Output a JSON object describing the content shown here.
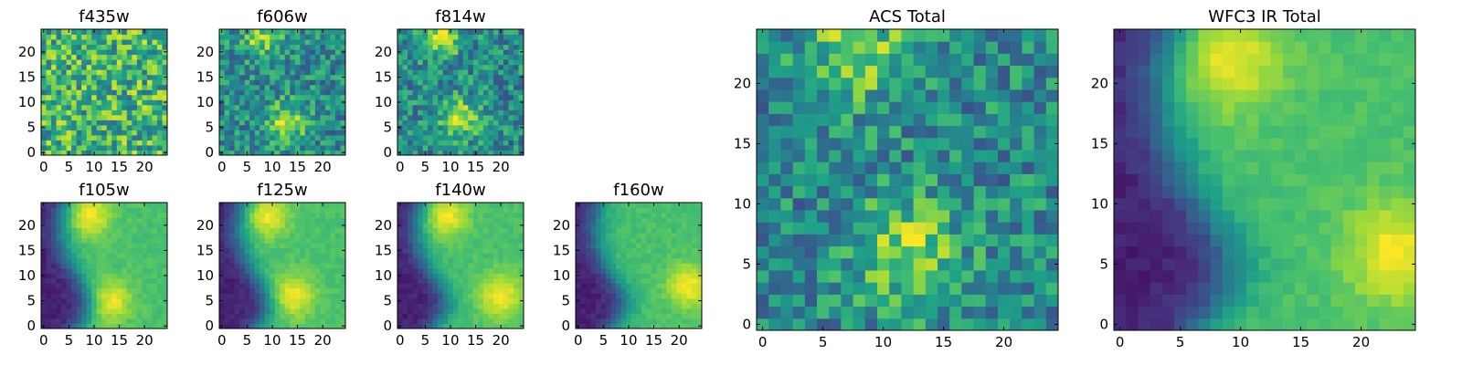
{
  "figure": {
    "colormap": "viridis",
    "colormap_stops": [
      "#440154",
      "#46327e",
      "#365c8d",
      "#277f8e",
      "#1fa187",
      "#4ac16d",
      "#a0da39",
      "#fde725"
    ]
  },
  "chart_data": [
    {
      "type": "heatmap",
      "title": "f435w",
      "xlabel": "",
      "ylabel": "",
      "xlim": [
        -0.5,
        24.5
      ],
      "ylim": [
        -0.5,
        24.5
      ],
      "origin": "lower",
      "grid": false,
      "xticks": [
        0,
        5,
        10,
        15,
        20
      ],
      "yticks": [
        0,
        5,
        10,
        15,
        20
      ],
      "xticklabels": [
        "0",
        "5",
        "10",
        "15",
        "20"
      ],
      "yticklabels": [
        "0",
        "5",
        "10",
        "15",
        "20"
      ],
      "pattern": "noise",
      "level_range": [
        0.25,
        0.95
      ]
    },
    {
      "type": "heatmap",
      "title": "f606w",
      "xlabel": "",
      "ylabel": "",
      "xlim": [
        -0.5,
        24.5
      ],
      "ylim": [
        -0.5,
        24.5
      ],
      "origin": "lower",
      "grid": false,
      "xticks": [
        0,
        5,
        10,
        15,
        20
      ],
      "yticks": [
        0,
        5,
        10,
        15,
        20
      ],
      "xticklabels": [
        "0",
        "5",
        "10",
        "15",
        "20"
      ],
      "yticklabels": [
        "0",
        "5",
        "10",
        "15",
        "20"
      ],
      "pattern": "noisy-blobs",
      "bright_regions": [
        [
          8,
          23
        ],
        [
          13,
          6
        ]
      ],
      "level_range": [
        0.05,
        0.95
      ]
    },
    {
      "type": "heatmap",
      "title": "f814w",
      "xlabel": "",
      "ylabel": "",
      "xlim": [
        -0.5,
        24.5
      ],
      "ylim": [
        -0.5,
        24.5
      ],
      "origin": "lower",
      "grid": false,
      "xticks": [
        0,
        5,
        10,
        15,
        20
      ],
      "yticks": [
        0,
        5,
        10,
        15,
        20
      ],
      "xticklabels": [
        "0",
        "5",
        "10",
        "15",
        "20"
      ],
      "yticklabels": [
        "0",
        "5",
        "10",
        "15",
        "20"
      ],
      "pattern": "noisy-blobs",
      "bright_regions": [
        [
          8,
          23
        ],
        [
          12,
          7
        ]
      ],
      "level_range": [
        0.05,
        0.95
      ]
    },
    {
      "type": "heatmap",
      "title": "f105w",
      "xlabel": "",
      "ylabel": "",
      "xlim": [
        -0.5,
        24.5
      ],
      "ylim": [
        -0.5,
        24.5
      ],
      "origin": "lower",
      "grid": false,
      "xticks": [
        0,
        5,
        10,
        15,
        20
      ],
      "yticks": [
        0,
        5,
        10,
        15,
        20
      ],
      "xticklabels": [
        "0",
        "5",
        "10",
        "15",
        "20"
      ],
      "yticklabels": [
        "0",
        "5",
        "10",
        "15",
        "20"
      ],
      "pattern": "dark-left-edge",
      "bright_regions": [
        [
          9,
          22
        ],
        [
          13,
          5
        ]
      ],
      "level_range": [
        0.0,
        1.0
      ]
    },
    {
      "type": "heatmap",
      "title": "f125w",
      "xlabel": "",
      "ylabel": "",
      "xlim": [
        -0.5,
        24.5
      ],
      "ylim": [
        -0.5,
        24.5
      ],
      "origin": "lower",
      "grid": false,
      "xticks": [
        0,
        5,
        10,
        15,
        20
      ],
      "yticks": [
        0,
        5,
        10,
        15,
        20
      ],
      "xticklabels": [
        "0",
        "5",
        "10",
        "15",
        "20"
      ],
      "yticklabels": [
        "0",
        "5",
        "10",
        "15",
        "20"
      ],
      "pattern": "dark-left-edge",
      "bright_regions": [
        [
          9,
          22
        ],
        [
          14,
          6
        ]
      ],
      "level_range": [
        0.0,
        1.0
      ]
    },
    {
      "type": "heatmap",
      "title": "f140w",
      "xlabel": "",
      "ylabel": "",
      "xlim": [
        -0.5,
        24.5
      ],
      "ylim": [
        -0.5,
        24.5
      ],
      "origin": "lower",
      "grid": false,
      "xticks": [
        0,
        5,
        10,
        15,
        20
      ],
      "yticks": [
        0,
        5,
        10,
        15,
        20
      ],
      "xticklabels": [
        "0",
        "5",
        "10",
        "15",
        "20"
      ],
      "yticklabels": [
        "0",
        "5",
        "10",
        "15",
        "20"
      ],
      "pattern": "dark-left-edge",
      "bright_regions": [
        [
          9,
          22
        ],
        [
          20,
          6
        ]
      ],
      "level_range": [
        0.0,
        1.0
      ]
    },
    {
      "type": "heatmap",
      "title": "f160w",
      "xlabel": "",
      "ylabel": "",
      "xlim": [
        -0.5,
        24.5
      ],
      "ylim": [
        -0.5,
        24.5
      ],
      "origin": "lower",
      "grid": false,
      "xticks": [
        0,
        5,
        10,
        15,
        20
      ],
      "yticks": [
        0,
        5,
        10,
        15,
        20
      ],
      "xticklabels": [
        "0",
        "5",
        "10",
        "15",
        "20"
      ],
      "yticklabels": [
        "0",
        "5",
        "10",
        "15",
        "20"
      ],
      "pattern": "dark-left-edge",
      "bright_regions": [
        [
          22,
          8
        ]
      ],
      "level_range": [
        0.0,
        1.0
      ]
    },
    {
      "type": "heatmap",
      "title": "ACS Total",
      "xlabel": "",
      "ylabel": "",
      "xlim": [
        -0.5,
        24.5
      ],
      "ylim": [
        -0.5,
        24.5
      ],
      "origin": "lower",
      "grid": false,
      "xticks": [
        0,
        5,
        10,
        15,
        20
      ],
      "yticks": [
        0,
        5,
        10,
        15,
        20
      ],
      "xticklabels": [
        "0",
        "5",
        "10",
        "15",
        "20"
      ],
      "yticklabels": [
        "0",
        "5",
        "10",
        "15",
        "20"
      ],
      "pattern": "noisy-blobs",
      "bright_regions": [
        [
          8,
          23
        ],
        [
          12,
          6
        ]
      ],
      "level_range": [
        0.2,
        0.95
      ]
    },
    {
      "type": "heatmap",
      "title": "WFC3 IR Total",
      "xlabel": "",
      "ylabel": "",
      "xlim": [
        -0.5,
        24.5
      ],
      "ylim": [
        -0.5,
        24.5
      ],
      "origin": "lower",
      "grid": false,
      "xticks": [
        0,
        5,
        10,
        15,
        20
      ],
      "yticks": [
        0,
        5,
        10,
        15,
        20
      ],
      "xticklabels": [
        "0",
        "5",
        "10",
        "15",
        "20"
      ],
      "yticklabels": [
        "0",
        "5",
        "10",
        "15",
        "20"
      ],
      "pattern": "dark-left-edge",
      "bright_regions": [
        [
          9,
          22
        ],
        [
          23,
          6
        ]
      ],
      "level_range": [
        0.0,
        1.0
      ]
    }
  ]
}
